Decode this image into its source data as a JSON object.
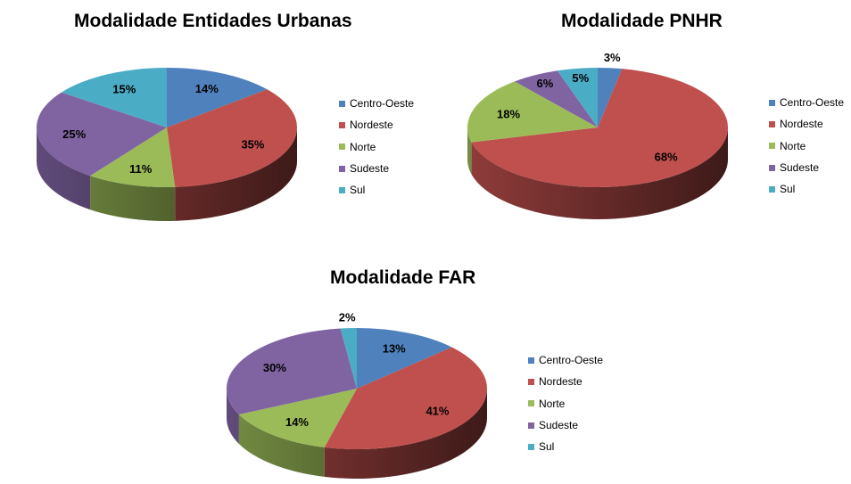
{
  "chart_data": [
    {
      "type": "pie",
      "title": "Modalidade Entidades Urbanas",
      "categories": [
        "Centro-Oeste",
        "Nordeste",
        "Norte",
        "Sudeste",
        "Sul"
      ],
      "values": [
        14,
        35,
        11,
        25,
        15
      ],
      "labels": [
        "14%",
        "35%",
        "11%",
        "25%",
        "15%"
      ],
      "legend": "right"
    },
    {
      "type": "pie",
      "title": "Modalidade PNHR",
      "categories": [
        "Centro-Oeste",
        "Nordeste",
        "Norte",
        "Sudeste",
        "Sul"
      ],
      "values": [
        3,
        68,
        18,
        6,
        5
      ],
      "labels": [
        "3%",
        "68%",
        "18%",
        "6%",
        "5%"
      ],
      "legend": "right"
    },
    {
      "type": "pie",
      "title": "Modalidade FAR",
      "categories": [
        "Centro-Oeste",
        "Nordeste",
        "Norte",
        "Sudeste",
        "Sul"
      ],
      "values": [
        13,
        41,
        14,
        30,
        2
      ],
      "labels": [
        "13%",
        "41%",
        "14%",
        "30%",
        "2%"
      ],
      "legend": "right"
    }
  ],
  "colors": [
    "#4f81bd",
    "#c0504d",
    "#9bbb59",
    "#8064a2",
    "#4bacc6"
  ]
}
